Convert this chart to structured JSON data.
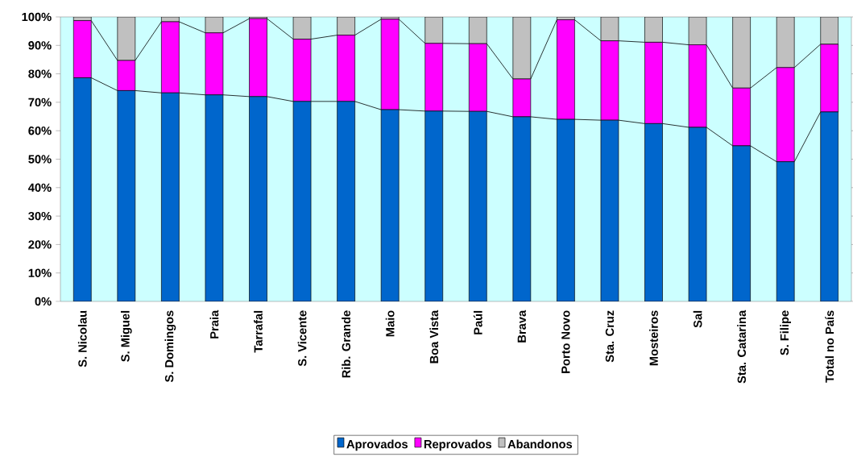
{
  "chart_data": {
    "type": "bar",
    "stacked": true,
    "categories": [
      "S. Nicolau",
      "S. Miguel",
      "S. Domingos",
      "Praia",
      "Tarrafal",
      "S. Vicente",
      "Rib. Grande",
      "Maio",
      "Boa Vista",
      "Paúl",
      "Brava",
      "Porto Novo",
      "Sta. Cruz",
      "Mosteiros",
      "Sal",
      "Sta. Catarina",
      "S. Filipe",
      "Total no País"
    ],
    "series": [
      {
        "name": "Aprovados",
        "color": "#0066cc",
        "values": [
          78.6,
          74.1,
          73.3,
          72.6,
          72.0,
          70.3,
          70.3,
          67.4,
          66.9,
          66.8,
          64.9,
          64.0,
          63.7,
          62.5,
          61.2,
          54.7,
          49.1,
          66.6
        ]
      },
      {
        "name": "Reprovados",
        "color": "#ff00ff",
        "values": [
          20.1,
          10.6,
          25.0,
          21.8,
          27.4,
          21.9,
          23.3,
          31.8,
          23.8,
          23.8,
          13.3,
          35.0,
          27.9,
          28.6,
          29.0,
          20.3,
          33.1,
          23.8
        ]
      },
      {
        "name": "Abandonos",
        "color": "#c0c0c0",
        "values": [
          1.3,
          15.3,
          1.7,
          5.6,
          0.6,
          7.8,
          6.4,
          0.8,
          9.3,
          9.4,
          21.8,
          1.0,
          8.4,
          8.9,
          9.8,
          25.0,
          17.8,
          9.6
        ]
      }
    ],
    "ylim": [
      0,
      100
    ],
    "yticks": [
      {
        "value": 0,
        "label": "0%"
      },
      {
        "value": 10,
        "label": "10%"
      },
      {
        "value": 20,
        "label": "20%"
      },
      {
        "value": 30,
        "label": "30%"
      },
      {
        "value": 40,
        "label": "40%"
      },
      {
        "value": 50,
        "label": "50%"
      },
      {
        "value": 60,
        "label": "60%"
      },
      {
        "value": 70,
        "label": "70%"
      },
      {
        "value": 80,
        "label": "80%"
      },
      {
        "value": 90,
        "label": "90%"
      },
      {
        "value": 100,
        "label": "100%"
      }
    ],
    "legend": "bottom"
  }
}
